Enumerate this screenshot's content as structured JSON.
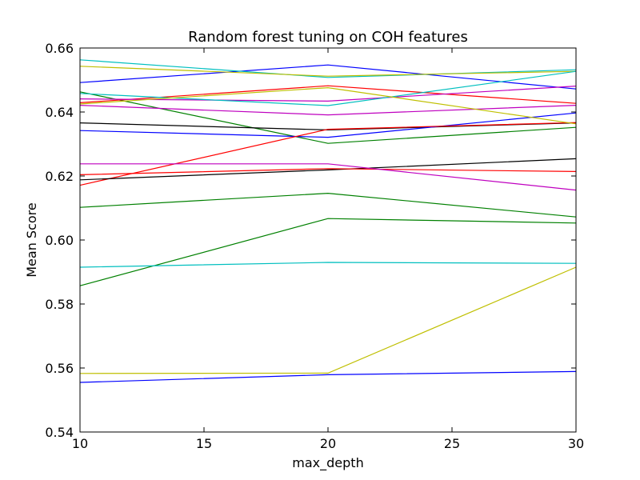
{
  "chart_data": {
    "type": "line",
    "title": "Random forest tuning on COH features",
    "xlabel": "max_depth",
    "ylabel": "Mean Score",
    "x": [
      10,
      20,
      30
    ],
    "xlim": [
      10,
      30
    ],
    "ylim": [
      0.54,
      0.66
    ],
    "xticks": [
      "10",
      "15",
      "20",
      "25",
      "30"
    ],
    "yticks": [
      "0.54",
      "0.56",
      "0.58",
      "0.60",
      "0.62",
      "0.64",
      "0.66"
    ],
    "grid": false,
    "legend": "none",
    "series": [
      {
        "color": "#0000ff",
        "values": [
          0.6492,
          0.6547,
          0.6472
        ]
      },
      {
        "color": "#008000",
        "values": [
          0.6463,
          0.6302,
          0.6352
        ]
      },
      {
        "color": "#ff0000",
        "values": [
          0.6429,
          0.6482,
          0.6427
        ]
      },
      {
        "color": "#00bfbf",
        "values": [
          0.6563,
          0.6508,
          0.6532
        ]
      },
      {
        "color": "#bf00bf",
        "values": [
          0.6441,
          0.6434,
          0.6481
        ]
      },
      {
        "color": "#bfbf00",
        "values": [
          0.6543,
          0.6512,
          0.6527
        ]
      },
      {
        "color": "#000000",
        "values": [
          0.6366,
          0.6344,
          0.6366
        ]
      },
      {
        "color": "#0000ff",
        "values": [
          0.6342,
          0.6321,
          0.6397
        ]
      },
      {
        "color": "#008000",
        "values": [
          0.6102,
          0.6146,
          0.6072
        ]
      },
      {
        "color": "#ff0000",
        "values": [
          0.6171,
          0.6346,
          0.6367
        ]
      },
      {
        "color": "#00bfbf",
        "values": [
          0.6458,
          0.642,
          0.6527
        ]
      },
      {
        "color": "#bf00bf",
        "values": [
          0.6421,
          0.6391,
          0.6421
        ]
      },
      {
        "color": "#bfbf00",
        "values": [
          0.6425,
          0.6476,
          0.6363
        ]
      },
      {
        "color": "#000000",
        "values": [
          0.6188,
          0.6219,
          0.6254
        ]
      },
      {
        "color": "#0000ff",
        "values": [
          0.5555,
          0.5579,
          0.5589
        ]
      },
      {
        "color": "#008000",
        "values": [
          0.5857,
          0.6067,
          0.6053
        ]
      },
      {
        "color": "#ff0000",
        "values": [
          0.6204,
          0.6223,
          0.6214
        ]
      },
      {
        "color": "#00bfbf",
        "values": [
          0.5915,
          0.593,
          0.5927
        ]
      },
      {
        "color": "#bf00bf",
        "values": [
          0.6238,
          0.6238,
          0.6156
        ]
      },
      {
        "color": "#bfbf00",
        "values": [
          0.5583,
          0.5584,
          0.5915
        ]
      }
    ]
  }
}
